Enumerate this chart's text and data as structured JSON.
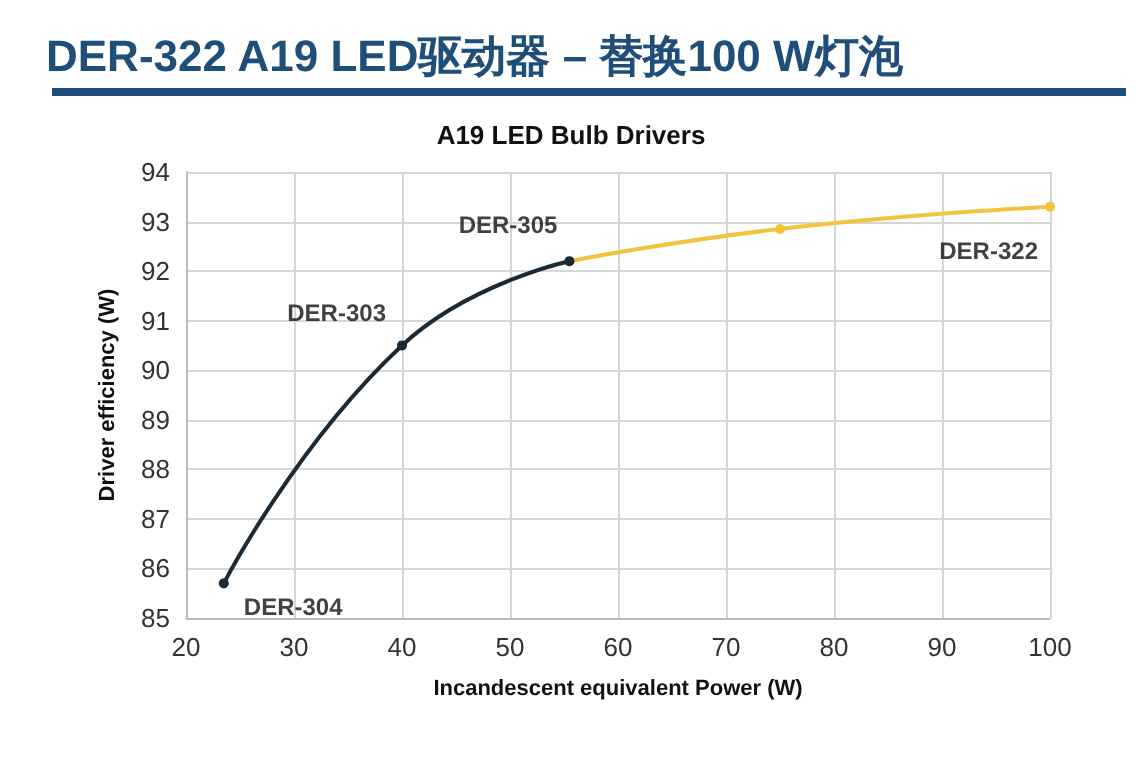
{
  "chart_data": {
    "type": "line",
    "title": "DER-322 A19 LED驱动器 – 替换100 W灯泡",
    "subtitle": "A19 LED Bulb Drivers",
    "xlabel": "Incandescent equivalent Power (W)",
    "ylabel": "Driver efficiency (W)",
    "series": [
      {
        "color": "#1b2a35",
        "x": [
          23.5,
          40,
          55.5
        ],
        "values": [
          85.7,
          90.5,
          92.2
        ]
      },
      {
        "color": "#f2c43c",
        "x": [
          55.5,
          75,
          100
        ],
        "values": [
          92.2,
          92.85,
          93.3
        ]
      }
    ],
    "xlim": [
      20,
      100
    ],
    "xticks": [
      20,
      30,
      40,
      50,
      60,
      70,
      80,
      90,
      100
    ],
    "ylim": [
      85,
      94
    ],
    "yticks": [
      85,
      86,
      87,
      88,
      89,
      90,
      91,
      92,
      93,
      94
    ],
    "grid": true,
    "marker": "circle",
    "line_style": "solid",
    "annotations": [
      {
        "text": "DER-304",
        "x": 23.5,
        "y": 85.7
      },
      {
        "text": "DER-303",
        "x": 40,
        "y": 90.5
      },
      {
        "text": "DER-305",
        "x": 55.5,
        "y": 92.2
      },
      {
        "text": "DER-322",
        "x": 100,
        "y": 93.3
      }
    ]
  }
}
